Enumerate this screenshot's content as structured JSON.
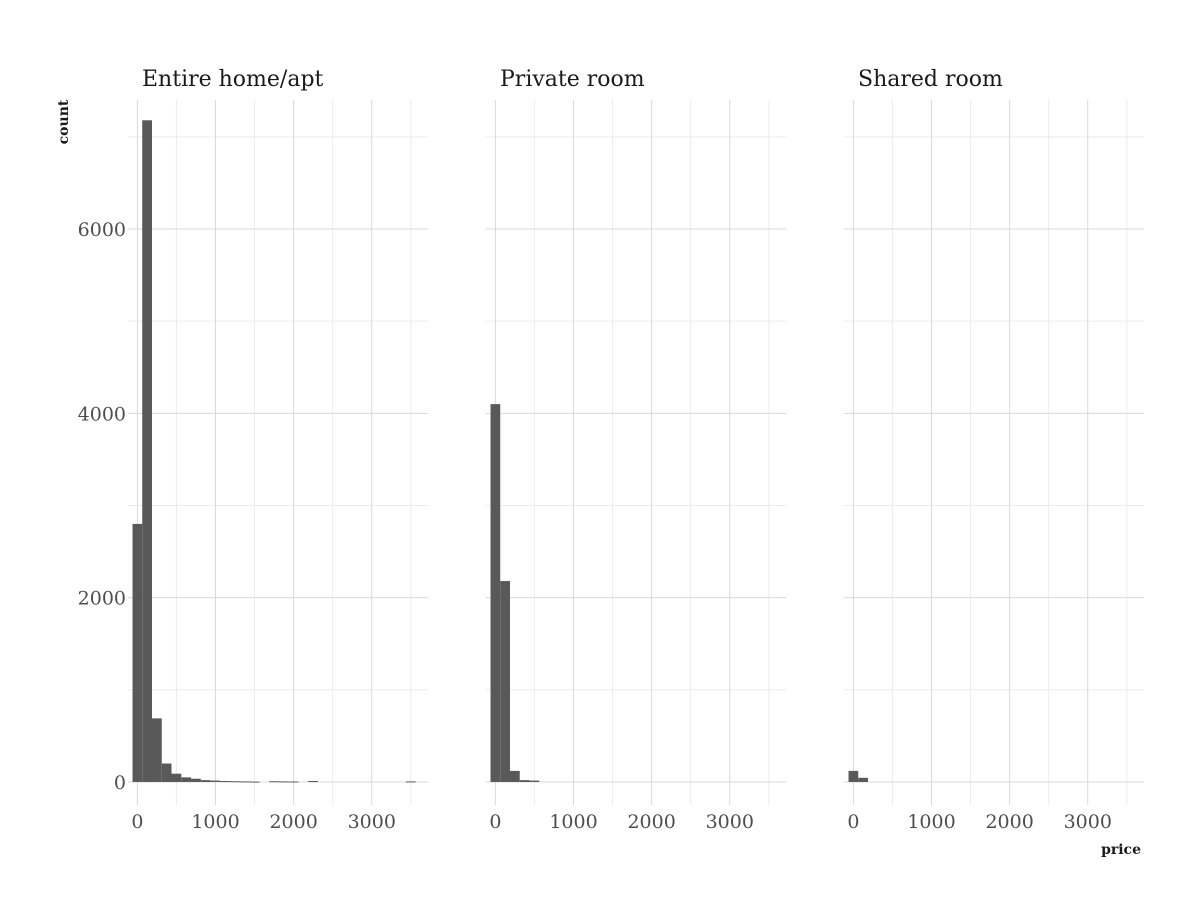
{
  "chart_data": {
    "type": "bar",
    "xlabel": "price",
    "ylabel": "count",
    "xlim": [
      -120,
      3720
    ],
    "ylim": [
      -250,
      7400
    ],
    "x_ticks": [
      0,
      1000,
      2000,
      3000
    ],
    "x_ticks_text": [
      "0",
      "1000",
      "2000",
      "3000"
    ],
    "y_ticks": [
      0,
      2000,
      4000,
      6000
    ],
    "y_ticks_text": [
      "0",
      "2000",
      "4000",
      "6000"
    ],
    "grid": true,
    "bin_width": 125,
    "panels": [
      {
        "title": "Entire home/apt",
        "bins": [
          {
            "x0": -62,
            "x1": 62,
            "count": 2800
          },
          {
            "x0": 62,
            "x1": 187,
            "count": 7180
          },
          {
            "x0": 187,
            "x1": 312,
            "count": 690
          },
          {
            "x0": 312,
            "x1": 437,
            "count": 200
          },
          {
            "x0": 437,
            "x1": 562,
            "count": 90
          },
          {
            "x0": 562,
            "x1": 687,
            "count": 50
          },
          {
            "x0": 687,
            "x1": 812,
            "count": 35
          },
          {
            "x0": 812,
            "x1": 937,
            "count": 20
          },
          {
            "x0": 937,
            "x1": 1062,
            "count": 15
          },
          {
            "x0": 1062,
            "x1": 1187,
            "count": 10
          },
          {
            "x0": 1187,
            "x1": 1312,
            "count": 8
          },
          {
            "x0": 1312,
            "x1": 1437,
            "count": 6
          },
          {
            "x0": 1437,
            "x1": 1562,
            "count": 4
          },
          {
            "x0": 1687,
            "x1": 1812,
            "count": 8
          },
          {
            "x0": 1812,
            "x1": 1937,
            "count": 6
          },
          {
            "x0": 1937,
            "x1": 2062,
            "count": 5
          },
          {
            "x0": 2187,
            "x1": 2312,
            "count": 10
          },
          {
            "x0": 3437,
            "x1": 3562,
            "count": 6
          }
        ]
      },
      {
        "title": "Private room",
        "bins": [
          {
            "x0": -62,
            "x1": 62,
            "count": 4100
          },
          {
            "x0": 62,
            "x1": 187,
            "count": 2180
          },
          {
            "x0": 187,
            "x1": 312,
            "count": 120
          },
          {
            "x0": 312,
            "x1": 437,
            "count": 20
          },
          {
            "x0": 437,
            "x1": 562,
            "count": 15
          }
        ]
      },
      {
        "title": "Shared room",
        "bins": [
          {
            "x0": -62,
            "x1": 62,
            "count": 120
          },
          {
            "x0": 62,
            "x1": 187,
            "count": 45
          }
        ]
      }
    ]
  }
}
